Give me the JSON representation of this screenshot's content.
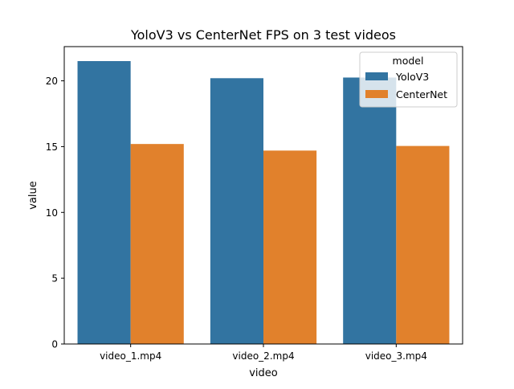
{
  "chart_data": {
    "type": "bar",
    "title": "YoloV3 vs CenterNet FPS on 3 test videos",
    "xlabel": "video",
    "ylabel": "value",
    "categories": [
      "video_1.mp4",
      "video_2.mp4",
      "video_3.mp4"
    ],
    "series": [
      {
        "name": "YoloV3",
        "color": "#3274a1",
        "values": [
          21.5,
          20.2,
          20.25
        ]
      },
      {
        "name": "CenterNet",
        "color": "#e1812c",
        "values": [
          15.2,
          14.7,
          15.05
        ]
      }
    ],
    "ylim": [
      0,
      22.6
    ],
    "yticks": [
      0,
      5,
      10,
      15,
      20
    ],
    "ytick_labels": [
      "0",
      "5",
      "10",
      "15",
      "20"
    ],
    "legend": {
      "title": "model",
      "placement": "top-right"
    },
    "grid": false
  }
}
